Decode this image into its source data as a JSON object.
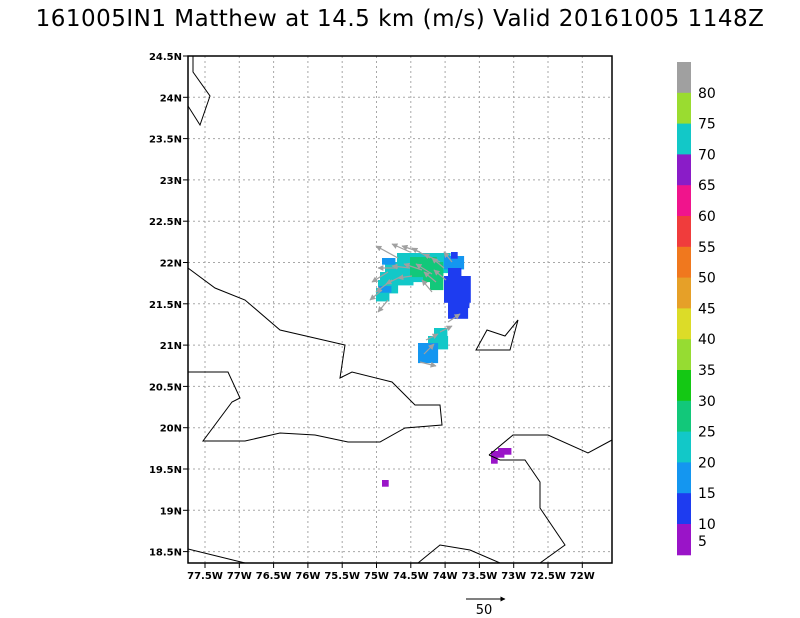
{
  "title": "161005IN1 Matthew at 14.5 km (m/s) Valid 20161005 1148Z",
  "lon_labels": [
    "77.5W",
    "77W",
    "76.5W",
    "76W",
    "75.5W",
    "75W",
    "74.5W",
    "74W",
    "73.5W",
    "73W",
    "72.5W",
    "72W"
  ],
  "lat_labels": [
    "24.5N",
    "24N",
    "23.5N",
    "23N",
    "22.5N",
    "22N",
    "21.5N",
    "21N",
    "20.5N",
    "20N",
    "19.5N",
    "19N",
    "18.5N"
  ],
  "colorbar": {
    "labels": [
      "80",
      "75",
      "70",
      "65",
      "60",
      "55",
      "50",
      "45",
      "40",
      "35",
      "30",
      "25",
      "20",
      "15",
      "10",
      "5"
    ],
    "colors": [
      "#a0a0a0",
      "#9adc30",
      "#12c8c8",
      "#8a1cc8",
      "#f0148c",
      "#f03c3c",
      "#f0781e",
      "#e6a028",
      "#dcdc28",
      "#96dc32",
      "#14c814",
      "#12c87a",
      "#12c8c8",
      "#1496f0",
      "#1e3cf0",
      "#9a14c8"
    ]
  },
  "legend": {
    "vector_label": "50"
  }
}
